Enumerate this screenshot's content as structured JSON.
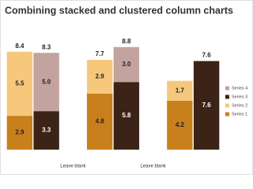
{
  "chart_data": {
    "type": "stacked-clustered-bar",
    "title": "Combining stacked and clustered column charts",
    "categories": [
      null,
      null,
      "Leave blank",
      null,
      null,
      "Leave blank",
      null,
      null
    ],
    "series": [
      {
        "name": "Series 1",
        "color": "#c8801c",
        "values": [
          2.9,
          null,
          null,
          4.8,
          null,
          null,
          4.2,
          null
        ]
      },
      {
        "name": "Series 2",
        "color": "#f6c87c",
        "values": [
          5.5,
          null,
          null,
          2.9,
          null,
          null,
          1.7,
          null
        ]
      },
      {
        "name": "Series 3",
        "color": "#3b2318",
        "values": [
          null,
          3.3,
          null,
          null,
          5.8,
          null,
          null,
          7.6
        ]
      },
      {
        "name": "Series 4",
        "color": "#c3a39d",
        "values": [
          null,
          5,
          null,
          null,
          3,
          null,
          null,
          null
        ],
        "value_labels": [
          null,
          "5.0",
          null,
          null,
          "3.0",
          null,
          null,
          null
        ]
      }
    ],
    "totals": [
      8.4,
      8.3,
      null,
      7.7,
      8.8,
      null,
      null,
      7.6
    ],
    "ylim": [
      0,
      10
    ],
    "legend": "right"
  }
}
